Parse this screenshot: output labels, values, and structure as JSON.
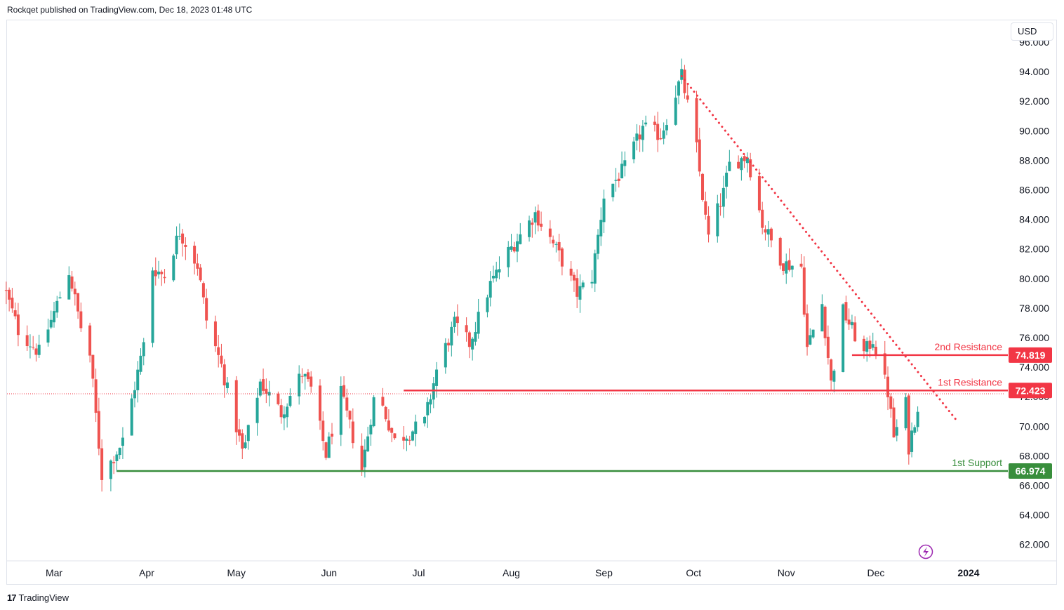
{
  "header": {
    "text": "Rockqet published on TradingView.com, Dec 18, 2023 01:48 UTC"
  },
  "currency_label": "USD",
  "footer": {
    "logo": "17",
    "brand": "TradingView"
  },
  "colors": {
    "up": "#26a69a",
    "down": "#ef5350",
    "resistance": "#f23645",
    "support": "#388e3c",
    "trendline": "#f23645",
    "last_price_line": "#f23645"
  },
  "chart_data": {
    "type": "candlestick",
    "y_axis": {
      "ylim": [
        60.8,
        96.7
      ],
      "ticks": [
        "62.000",
        "64.000",
        "66.000",
        "68.000",
        "70.000",
        "72.000",
        "74.000",
        "76.000",
        "78.000",
        "80.000",
        "82.000",
        "84.000",
        "86.000",
        "88.000",
        "90.000",
        "92.000",
        "94.000",
        "96.000"
      ],
      "side": "right"
    },
    "x_axis": {
      "labels": [
        {
          "text": "Mar",
          "date": "2023-03-01"
        },
        {
          "text": "Apr",
          "date": "2023-04-01"
        },
        {
          "text": "May",
          "date": "2023-05-01"
        },
        {
          "text": "Jun",
          "date": "2023-06-01"
        },
        {
          "text": "Jul",
          "date": "2023-07-01"
        },
        {
          "text": "Aug",
          "date": "2023-08-01"
        },
        {
          "text": "Sep",
          "date": "2023-09-01"
        },
        {
          "text": "Oct",
          "date": "2023-10-01"
        },
        {
          "text": "Nov",
          "date": "2023-11-01"
        },
        {
          "text": "Dec",
          "date": "2023-12-01"
        },
        {
          "text": "2024",
          "date": "2024-01-01",
          "bold": true
        }
      ]
    },
    "waypoints": [
      [
        "2023-02-13",
        79.0
      ],
      [
        "2023-02-17",
        76.5
      ],
      [
        "2023-02-24",
        75.0
      ],
      [
        "2023-03-01",
        77.7
      ],
      [
        "2023-03-06",
        80.5
      ],
      [
        "2023-03-10",
        76.7
      ],
      [
        "2023-03-13",
        74.8
      ],
      [
        "2023-03-17",
        66.7
      ],
      [
        "2023-03-20",
        67.6
      ],
      [
        "2023-03-24",
        69.0
      ],
      [
        "2023-03-31",
        75.5
      ],
      [
        "2023-04-03",
        80.7
      ],
      [
        "2023-04-07",
        80.2
      ],
      [
        "2023-04-12",
        83.2
      ],
      [
        "2023-04-18",
        80.9
      ],
      [
        "2023-04-21",
        77.2
      ],
      [
        "2023-04-26",
        74.1
      ],
      [
        "2023-05-03",
        68.3
      ],
      [
        "2023-05-04",
        68.8
      ],
      [
        "2023-05-09",
        73.0
      ],
      [
        "2023-05-16",
        70.9
      ],
      [
        "2023-05-23",
        73.6
      ],
      [
        "2023-05-26",
        72.5
      ],
      [
        "2023-05-31",
        68.1
      ],
      [
        "2023-06-05",
        72.2
      ],
      [
        "2023-06-12",
        67.1
      ],
      [
        "2023-06-16",
        71.8
      ],
      [
        "2023-06-19",
        71.3
      ],
      [
        "2023-06-23",
        69.0
      ],
      [
        "2023-06-28",
        69.6
      ],
      [
        "2023-07-03",
        70.3
      ],
      [
        "2023-07-07",
        73.8
      ],
      [
        "2023-07-13",
        76.9
      ],
      [
        "2023-07-18",
        75.6
      ],
      [
        "2023-07-25",
        79.6
      ],
      [
        "2023-07-31",
        81.8
      ],
      [
        "2023-08-09",
        84.4
      ],
      [
        "2023-08-14",
        82.7
      ],
      [
        "2023-08-18",
        81.2
      ],
      [
        "2023-08-23",
        79.0
      ],
      [
        "2023-08-28",
        80.1
      ],
      [
        "2023-09-01",
        85.6
      ],
      [
        "2023-09-08",
        87.5
      ],
      [
        "2023-09-14",
        90.2
      ],
      [
        "2023-09-20",
        89.7
      ],
      [
        "2023-09-27",
        93.7
      ],
      [
        "2023-10-02",
        88.8
      ],
      [
        "2023-10-05",
        84.0
      ],
      [
        "2023-10-06",
        82.8
      ],
      [
        "2023-10-11",
        85.8
      ],
      [
        "2023-10-13",
        87.7
      ],
      [
        "2023-10-19",
        88.3
      ],
      [
        "2023-10-24",
        83.7
      ],
      [
        "2023-10-31",
        81.0
      ],
      [
        "2023-11-06",
        80.8
      ],
      [
        "2023-11-08",
        75.3
      ],
      [
        "2023-11-13",
        78.3
      ],
      [
        "2023-11-16",
        72.9
      ],
      [
        "2023-11-20",
        77.8
      ],
      [
        "2023-11-27",
        74.9
      ],
      [
        "2023-11-30",
        75.9
      ],
      [
        "2023-12-05",
        72.3
      ],
      [
        "2023-12-07",
        69.3
      ],
      [
        "2023-12-11",
        71.5
      ],
      [
        "2023-12-12",
        68.6
      ],
      [
        "2023-12-15",
        71.4
      ]
    ],
    "last_price": 72.2,
    "levels": [
      {
        "name": "2nd Resistance",
        "value": 74.819,
        "label": "74.819",
        "start": "2023-11-23",
        "color": "#f23645"
      },
      {
        "name": "1st Resistance",
        "value": 72.423,
        "label": "72.423",
        "start": "2023-06-26",
        "color": "#f23645"
      },
      {
        "name": "1st Support",
        "value": 66.974,
        "label": "66.974",
        "start": "2023-03-22",
        "color": "#388e3c"
      }
    ],
    "trendline": {
      "start": [
        "2023-09-27",
        93.7
      ],
      "end": [
        "2023-12-28",
        70.4
      ],
      "style": "dotted"
    },
    "grid": false
  }
}
